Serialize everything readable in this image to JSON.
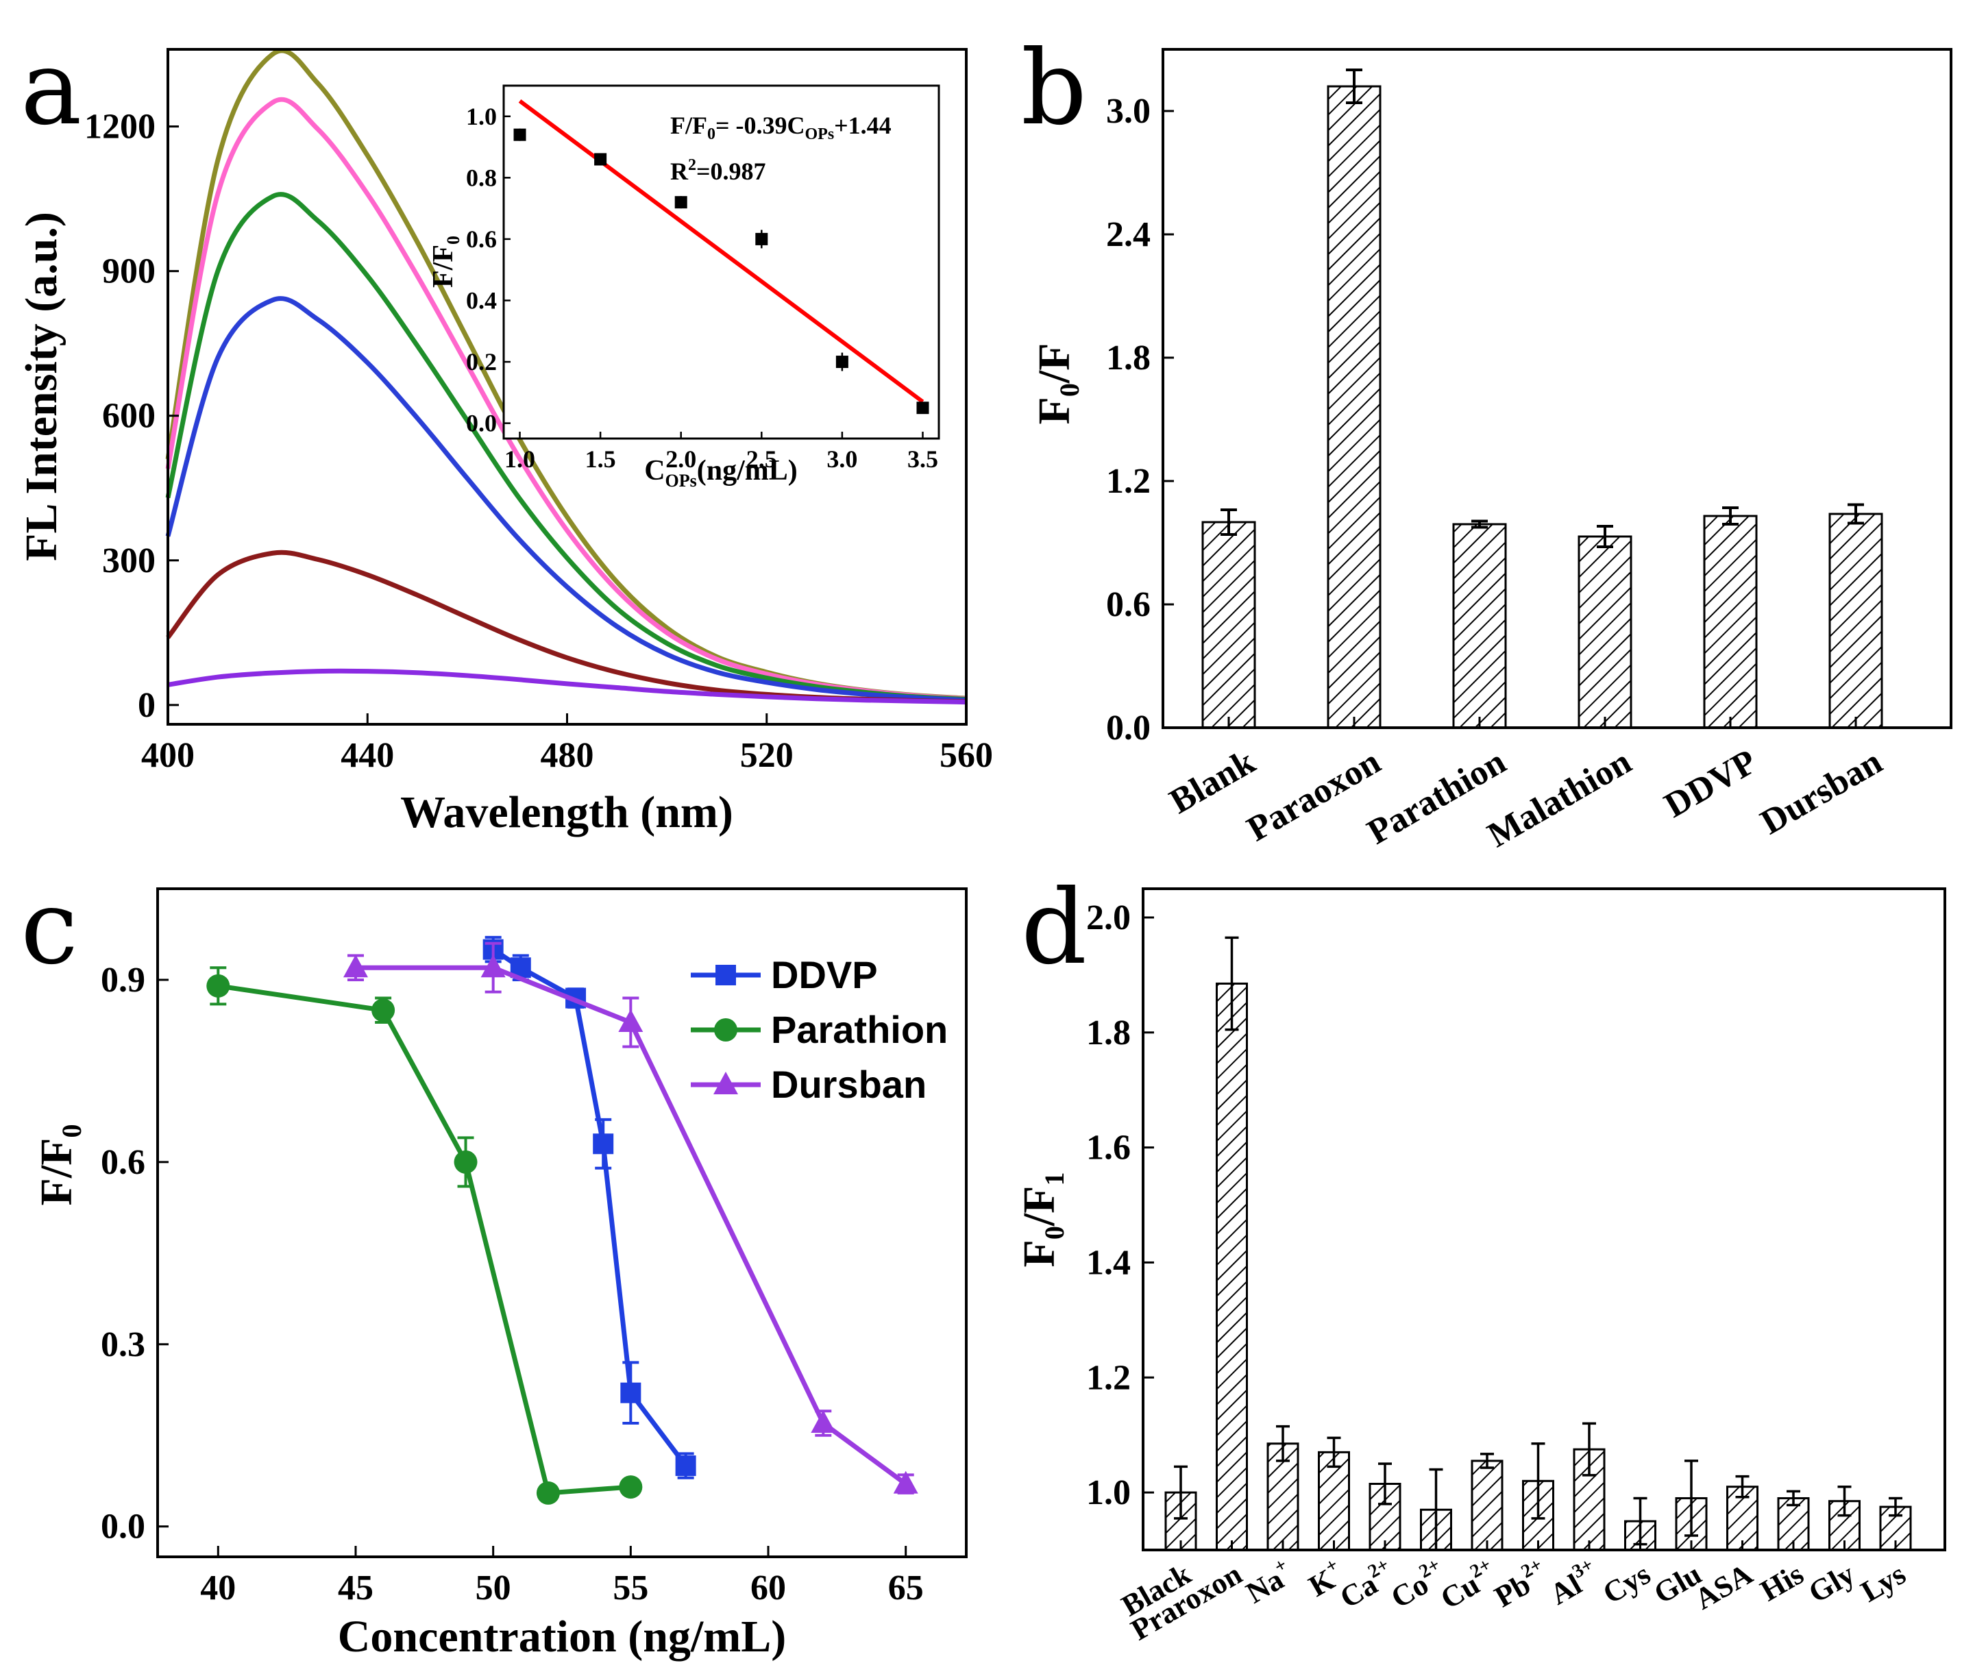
{
  "panels": {
    "a": "a",
    "b": "b",
    "c": "c",
    "d": "d"
  },
  "chart_data": [
    {
      "panel": "a",
      "type": "line",
      "xlabel": "Wavelength (nm)",
      "ylabel": "FL Intensity (a.u.)",
      "xlim": [
        400,
        560
      ],
      "ylim": [
        -40,
        1360
      ],
      "xticks": [
        400,
        440,
        480,
        520,
        560
      ],
      "yticks": [
        0,
        300,
        600,
        900,
        1200
      ],
      "series": [
        {
          "name": "olive",
          "color": "#8c8c28",
          "x": [
            400,
            410,
            421,
            430,
            440,
            450,
            460,
            470,
            480,
            490,
            500,
            510,
            520,
            530,
            540,
            550,
            560
          ],
          "y": [
            510,
            1130,
            1350,
            1290,
            1140,
            960,
            760,
            560,
            390,
            255,
            160,
            100,
            68,
            45,
            30,
            20,
            14
          ]
        },
        {
          "name": "pink",
          "color": "#ff66cc",
          "x": [
            400,
            410,
            421,
            430,
            440,
            450,
            460,
            470,
            480,
            490,
            500,
            510,
            520,
            530,
            540,
            550,
            560
          ],
          "y": [
            490,
            1060,
            1250,
            1195,
            1060,
            890,
            705,
            520,
            362,
            238,
            150,
            95,
            64,
            43,
            29,
            19,
            13
          ]
        },
        {
          "name": "green",
          "color": "#1f8f2a",
          "x": [
            400,
            410,
            421,
            430,
            440,
            450,
            460,
            470,
            480,
            490,
            500,
            510,
            520,
            530,
            540,
            550,
            560
          ],
          "y": [
            430,
            900,
            1055,
            1005,
            890,
            745,
            590,
            435,
            305,
            200,
            128,
            82,
            56,
            38,
            26,
            17,
            12
          ]
        },
        {
          "name": "blue",
          "color": "#2a3fd6",
          "x": [
            400,
            410,
            421,
            430,
            440,
            450,
            460,
            470,
            480,
            490,
            500,
            510,
            520,
            530,
            540,
            550,
            560
          ],
          "y": [
            350,
            720,
            840,
            800,
            710,
            595,
            470,
            348,
            245,
            163,
            105,
            68,
            47,
            32,
            22,
            15,
            10
          ]
        },
        {
          "name": "maroon",
          "color": "#8b1a1a",
          "x": [
            400,
            410,
            421,
            430,
            440,
            450,
            460,
            470,
            480,
            490,
            500,
            510,
            520,
            530,
            540,
            550,
            560
          ],
          "y": [
            140,
            270,
            315,
            302,
            270,
            228,
            182,
            137,
            98,
            68,
            46,
            31,
            22,
            16,
            12,
            9,
            7
          ]
        },
        {
          "name": "purple",
          "color": "#8a2be2",
          "x": [
            400,
            410,
            420,
            430,
            440,
            450,
            460,
            470,
            480,
            490,
            500,
            510,
            520,
            530,
            540,
            550,
            560
          ],
          "y": [
            42,
            58,
            66,
            70,
            70,
            67,
            61,
            53,
            44,
            36,
            28,
            22,
            17,
            13,
            10,
            8,
            6
          ]
        }
      ],
      "inset": {
        "type": "scatter",
        "xlabel_main": "C",
        "xlabel_sub": "OPs",
        "xlabel_tail": "(ng/mL)",
        "ylabel_main": "F/F",
        "ylabel_sub": "0",
        "xlim": [
          0.9,
          3.6
        ],
        "ylim": [
          -0.05,
          1.1
        ],
        "xticks": [
          "1.0",
          "1.5",
          "2.0",
          "2.5",
          "3.0",
          "3.5"
        ],
        "yticks": [
          "0.0",
          "0.2",
          "0.4",
          "0.6",
          "0.8",
          "1.0"
        ],
        "points": {
          "x": [
            1.0,
            1.5,
            2.0,
            2.5,
            3.0,
            3.5
          ],
          "y": [
            0.94,
            0.86,
            0.72,
            0.6,
            0.2,
            0.05
          ],
          "err": [
            0.02,
            0.02,
            0.02,
            0.03,
            0.03,
            0.01
          ]
        },
        "fit": {
          "x": [
            1.0,
            3.5
          ],
          "y": [
            1.05,
            0.07
          ],
          "color": "#ff0000"
        },
        "eq_a": "F/F",
        "eq_a_sub": "0",
        "eq_b": "= -0.39C",
        "eq_b_sub": "OPs",
        "eq_c": "+1.44",
        "r2_a": "R",
        "r2_sup": "2",
        "r2_b": "=0.987"
      }
    },
    {
      "panel": "b",
      "type": "bar",
      "ylabel_main": "F",
      "ylabel_sub": "0",
      "ylabel_tail": "/F",
      "ylim": [
        0,
        3.3
      ],
      "yticks": [
        "0.0",
        "0.6",
        "1.2",
        "1.8",
        "2.4",
        "3.0"
      ],
      "categories": [
        "Blank",
        "Paraoxon",
        "Parathion",
        "Malathion",
        "DDVP",
        "Dursban"
      ],
      "values": [
        1.0,
        3.12,
        0.99,
        0.93,
        1.03,
        1.04
      ],
      "errors": [
        0.06,
        0.08,
        0.015,
        0.05,
        0.04,
        0.045
      ]
    },
    {
      "panel": "c",
      "type": "line",
      "xlabel": "Concentration (ng/mL)",
      "ylabel_main": "F/F",
      "ylabel_sub": "0",
      "xlim": [
        37.8,
        67.2
      ],
      "ylim": [
        -0.05,
        1.05
      ],
      "xticks": [
        40,
        45,
        50,
        55,
        60,
        65
      ],
      "yticks": [
        "0.0",
        "0.3",
        "0.6",
        "0.9"
      ],
      "series": [
        {
          "name": "DDVP",
          "color": "#1f3fe0",
          "marker": "square",
          "x": [
            50,
            51,
            53,
            54,
            55,
            57
          ],
          "y": [
            0.95,
            0.92,
            0.87,
            0.63,
            0.22,
            0.1
          ],
          "err": [
            0.02,
            0.02,
            0.015,
            0.04,
            0.05,
            0.02
          ]
        },
        {
          "name": "Parathion",
          "color": "#1f8f2a",
          "marker": "circle",
          "x": [
            40,
            46,
            49,
            52,
            55
          ],
          "y": [
            0.89,
            0.85,
            0.6,
            0.055,
            0.065
          ],
          "err": [
            0.03,
            0.02,
            0.04,
            0.01,
            0.01
          ]
        },
        {
          "name": "Dursban",
          "color": "#9a3ce0",
          "marker": "triangle",
          "x": [
            45,
            50,
            55,
            62,
            65
          ],
          "y": [
            0.92,
            0.92,
            0.83,
            0.17,
            0.07
          ],
          "err": [
            0.02,
            0.04,
            0.04,
            0.02,
            0.015
          ]
        }
      ]
    },
    {
      "panel": "d",
      "type": "bar",
      "ylabel_main": "F",
      "ylabel_sub0": "0",
      "ylabel_mid": "/F",
      "ylabel_sub1": "1",
      "ylim": [
        0.9,
        2.05
      ],
      "yticks": [
        "1.0",
        "1.2",
        "1.4",
        "1.6",
        "1.8",
        "2.0"
      ],
      "categories": [
        {
          "label": "Black",
          "sup": ""
        },
        {
          "label": "Praroxon",
          "sup": ""
        },
        {
          "label": "Na",
          "sup": "+"
        },
        {
          "label": "K",
          "sup": "+"
        },
        {
          "label": "Ca",
          "sup": "2+"
        },
        {
          "label": "Co",
          "sup": "2+"
        },
        {
          "label": "Cu",
          "sup": "2+"
        },
        {
          "label": "Pb",
          "sup": "2+"
        },
        {
          "label": "Al",
          "sup": "3+"
        },
        {
          "label": "Cys",
          "sup": ""
        },
        {
          "label": "Glu",
          "sup": ""
        },
        {
          "label": "ASA",
          "sup": ""
        },
        {
          "label": "His",
          "sup": ""
        },
        {
          "label": "Gly",
          "sup": ""
        },
        {
          "label": "Lys",
          "sup": ""
        }
      ],
      "values": [
        1.0,
        1.885,
        1.085,
        1.07,
        1.015,
        0.97,
        1.055,
        1.02,
        1.075,
        0.95,
        0.99,
        1.01,
        0.99,
        0.985,
        0.975
      ],
      "errors": [
        0.045,
        0.08,
        0.03,
        0.025,
        0.035,
        0.07,
        0.012,
        0.065,
        0.045,
        0.04,
        0.065,
        0.018,
        0.012,
        0.025,
        0.015
      ]
    }
  ]
}
